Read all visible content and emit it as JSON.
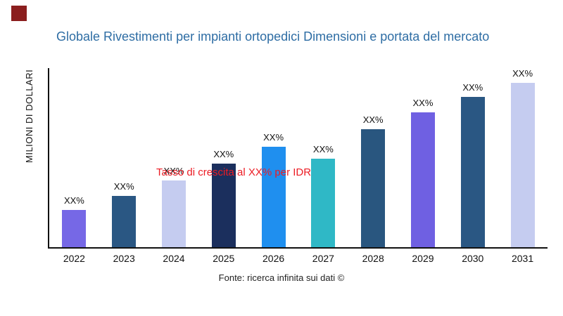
{
  "page": {
    "source": "Fonte: ricerca infinita sui dati ©"
  },
  "chart_data": {
    "type": "bar",
    "title": "Globale Rivestimenti per impianti ortopedici Dimensioni e portata del mercato",
    "ylabel": "MILIONI DI DOLLARI",
    "xlabel": "",
    "annotation": "Tasso di crescita al XX% per IDR",
    "annotation_color": "#EC1C24",
    "categories": [
      "2022",
      "2023",
      "2024",
      "2025",
      "2026",
      "2027",
      "2028",
      "2029",
      "2030",
      "2031"
    ],
    "values": [
      22,
      30,
      39,
      49,
      59,
      52,
      69,
      79,
      88,
      98
    ],
    "bar_labels": [
      "XX%",
      "XX%",
      "XX%",
      "XX%",
      "XX%",
      "XX%",
      "XX%",
      "XX%",
      "XX%",
      "XX%"
    ],
    "bar_colors": [
      "#7668E6",
      "#2A5783",
      "#C5CCF0",
      "#1B2F5D",
      "#1F8FEF",
      "#2FB8C6",
      "#29567F",
      "#6F60E2",
      "#2A5783",
      "#C5CCF0"
    ],
    "ylim": [
      0,
      105
    ],
    "grid": false,
    "legend": "none"
  }
}
